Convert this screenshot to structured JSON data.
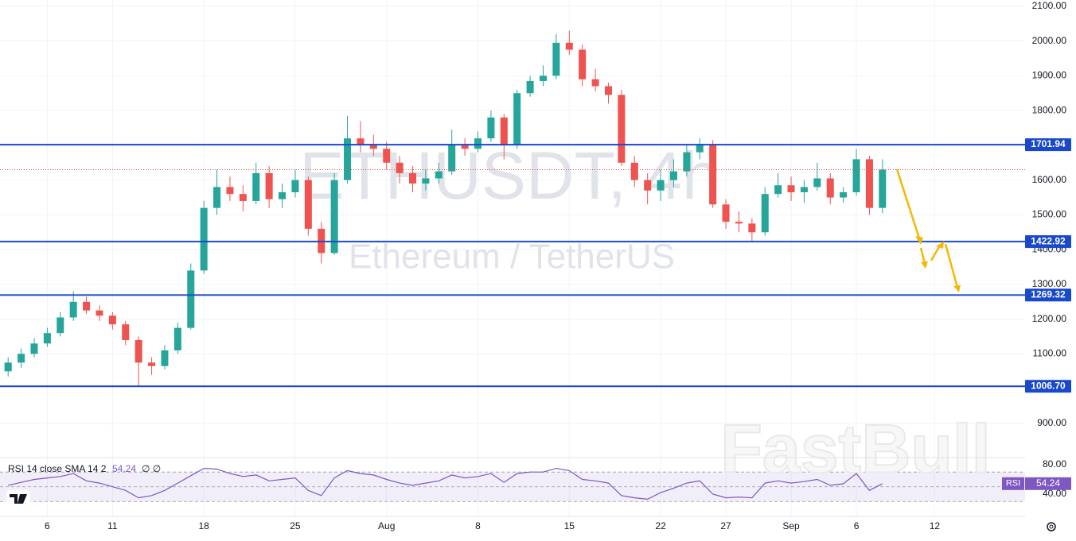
{
  "chart_data": [
    {
      "type": "candlestick",
      "title": "ETHUSDT, 4h",
      "subtitle": "Ethereum / TetherUS",
      "categories": [
        null,
        null,
        null,
        "6",
        null,
        null,
        null,
        null,
        "11",
        null,
        null,
        null,
        null,
        null,
        null,
        "18",
        null,
        null,
        null,
        null,
        null,
        null,
        "25",
        null,
        null,
        null,
        null,
        null,
        null,
        "Aug",
        null,
        null,
        null,
        null,
        null,
        null,
        "8",
        null,
        null,
        null,
        null,
        null,
        null,
        "15",
        null,
        null,
        null,
        null,
        null,
        null,
        "22",
        null,
        null,
        null,
        null,
        "27",
        null,
        null,
        null,
        null,
        "Sep",
        null,
        null,
        null,
        null,
        "6",
        null,
        null,
        null,
        null,
        null,
        "12",
        null,
        null,
        null,
        null,
        null,
        null
      ],
      "open": [
        1050,
        1075,
        1100,
        1130,
        1160,
        1205,
        1250,
        1225,
        1210,
        1185,
        1140,
        1075,
        1065,
        1110,
        1175,
        1340,
        1520,
        1580,
        1560,
        1540,
        1620,
        1545,
        1565,
        1600,
        1460,
        1390,
        1600,
        1720,
        1700,
        1690,
        1650,
        1620,
        1590,
        1605,
        1625,
        1700,
        1690,
        1720,
        1780,
        1700,
        1850,
        1885,
        1900,
        1995,
        1975,
        1890,
        1870,
        1845,
        1650,
        1600,
        1570,
        1600,
        1625,
        1680,
        1700,
        1530,
        1480,
        1475,
        1450,
        1560,
        1585,
        1565,
        1580,
        1605,
        1550,
        1565,
        1660,
        1520,
        null,
        null,
        null,
        null,
        null,
        null,
        null,
        null,
        null,
        null
      ],
      "high": [
        1090,
        1115,
        1145,
        1175,
        1220,
        1280,
        1265,
        1240,
        1220,
        1195,
        1150,
        1090,
        1125,
        1190,
        1360,
        1540,
        1630,
        1610,
        1585,
        1650,
        1640,
        1590,
        1630,
        1610,
        1480,
        1620,
        1785,
        1770,
        1730,
        1710,
        1670,
        1640,
        1630,
        1650,
        1745,
        1720,
        1740,
        1800,
        1790,
        1860,
        1900,
        1930,
        2020,
        2030,
        1990,
        1920,
        1880,
        1860,
        1670,
        1620,
        1630,
        1660,
        1700,
        1720,
        1715,
        1545,
        1510,
        1490,
        1580,
        1620,
        1610,
        1600,
        1650,
        1620,
        1580,
        1690,
        1670,
        1660,
        null,
        null,
        null,
        null,
        null,
        null,
        null,
        null,
        null,
        null
      ],
      "low": [
        1035,
        1060,
        1090,
        1120,
        1150,
        1195,
        1215,
        1195,
        1170,
        1125,
        1006,
        1040,
        1055,
        1100,
        1170,
        1330,
        1500,
        1540,
        1510,
        1530,
        1520,
        1520,
        1550,
        1440,
        1360,
        1385,
        1590,
        1680,
        1670,
        1630,
        1590,
        1565,
        1570,
        1590,
        1615,
        1670,
        1680,
        1710,
        1660,
        1690,
        1840,
        1870,
        1890,
        1960,
        1870,
        1855,
        1820,
        1640,
        1580,
        1530,
        1540,
        1580,
        1610,
        1660,
        1520,
        1460,
        1450,
        1422,
        1440,
        1550,
        1540,
        1535,
        1570,
        1530,
        1535,
        1555,
        1500,
        1505,
        null,
        null,
        null,
        null,
        null,
        null,
        null,
        null,
        null,
        null
      ],
      "close": [
        1075,
        1100,
        1130,
        1160,
        1205,
        1250,
        1225,
        1210,
        1185,
        1140,
        1075,
        1065,
        1110,
        1175,
        1340,
        1520,
        1580,
        1560,
        1540,
        1620,
        1545,
        1565,
        1600,
        1460,
        1390,
        1600,
        1720,
        1700,
        1690,
        1650,
        1620,
        1590,
        1605,
        1625,
        1700,
        1690,
        1720,
        1780,
        1700,
        1850,
        1885,
        1900,
        1995,
        1975,
        1890,
        1870,
        1845,
        1650,
        1600,
        1570,
        1600,
        1625,
        1680,
        1700,
        1530,
        1480,
        1475,
        1450,
        1560,
        1585,
        1565,
        1580,
        1605,
        1550,
        1565,
        1660,
        1520,
        1630,
        null,
        null,
        null,
        null,
        null,
        null,
        null,
        null,
        null,
        null
      ],
      "up_color": "#26a69a",
      "down_color": "#ef5350",
      "ylim": [
        804,
        2118
      ],
      "yticks": [
        {
          "value": 900,
          "label": "900.00"
        },
        {
          "value": 1100,
          "label": "1100.00"
        },
        {
          "value": 1200,
          "label": "1200.00"
        },
        {
          "value": 1300,
          "label": "1300.00"
        },
        {
          "value": 1400,
          "label": "1400.00"
        },
        {
          "value": 1500,
          "label": "1500.00"
        },
        {
          "value": 1600,
          "label": "1600.00"
        },
        {
          "value": 1800,
          "label": "1800.00"
        },
        {
          "value": 1900,
          "label": "1900.00"
        },
        {
          "value": 2000,
          "label": "2000.00"
        },
        {
          "value": 2100,
          "label": "2100.00"
        }
      ],
      "levels": [
        1701.94,
        1422.92,
        1269.32,
        1006.7
      ],
      "level_labels": [
        "1701.94",
        "1422.92",
        "1269.32",
        "1006.70"
      ],
      "level_color": "#1848cc",
      "grid": true
    },
    {
      "type": "line",
      "name": "RSI",
      "title": "RSI 14 close SMA 14 2",
      "extra": "∅ ∅",
      "color": "#7e57c2",
      "values": [
        52,
        56,
        60,
        62,
        64,
        68,
        58,
        55,
        50,
        45,
        35,
        38,
        45,
        55,
        65,
        75,
        74,
        68,
        64,
        66,
        58,
        60,
        62,
        45,
        38,
        62,
        72,
        68,
        66,
        60,
        55,
        52,
        55,
        58,
        66,
        62,
        64,
        68,
        56,
        68,
        70,
        70,
        75,
        72,
        60,
        58,
        55,
        38,
        35,
        33,
        42,
        48,
        55,
        58,
        40,
        35,
        36,
        35,
        55,
        58,
        55,
        57,
        60,
        52,
        54,
        68,
        45,
        54.24,
        null,
        null,
        null,
        null,
        null,
        null,
        null,
        null,
        null,
        null
      ],
      "ylim": [
        9.7,
        88.6
      ],
      "yticks": [
        {
          "value": 40,
          "label": "40.00"
        },
        {
          "value": 80,
          "label": "80.00"
        }
      ],
      "bands": [
        30,
        50,
        70
      ]
    }
  ],
  "watermark": "FastBull"
}
